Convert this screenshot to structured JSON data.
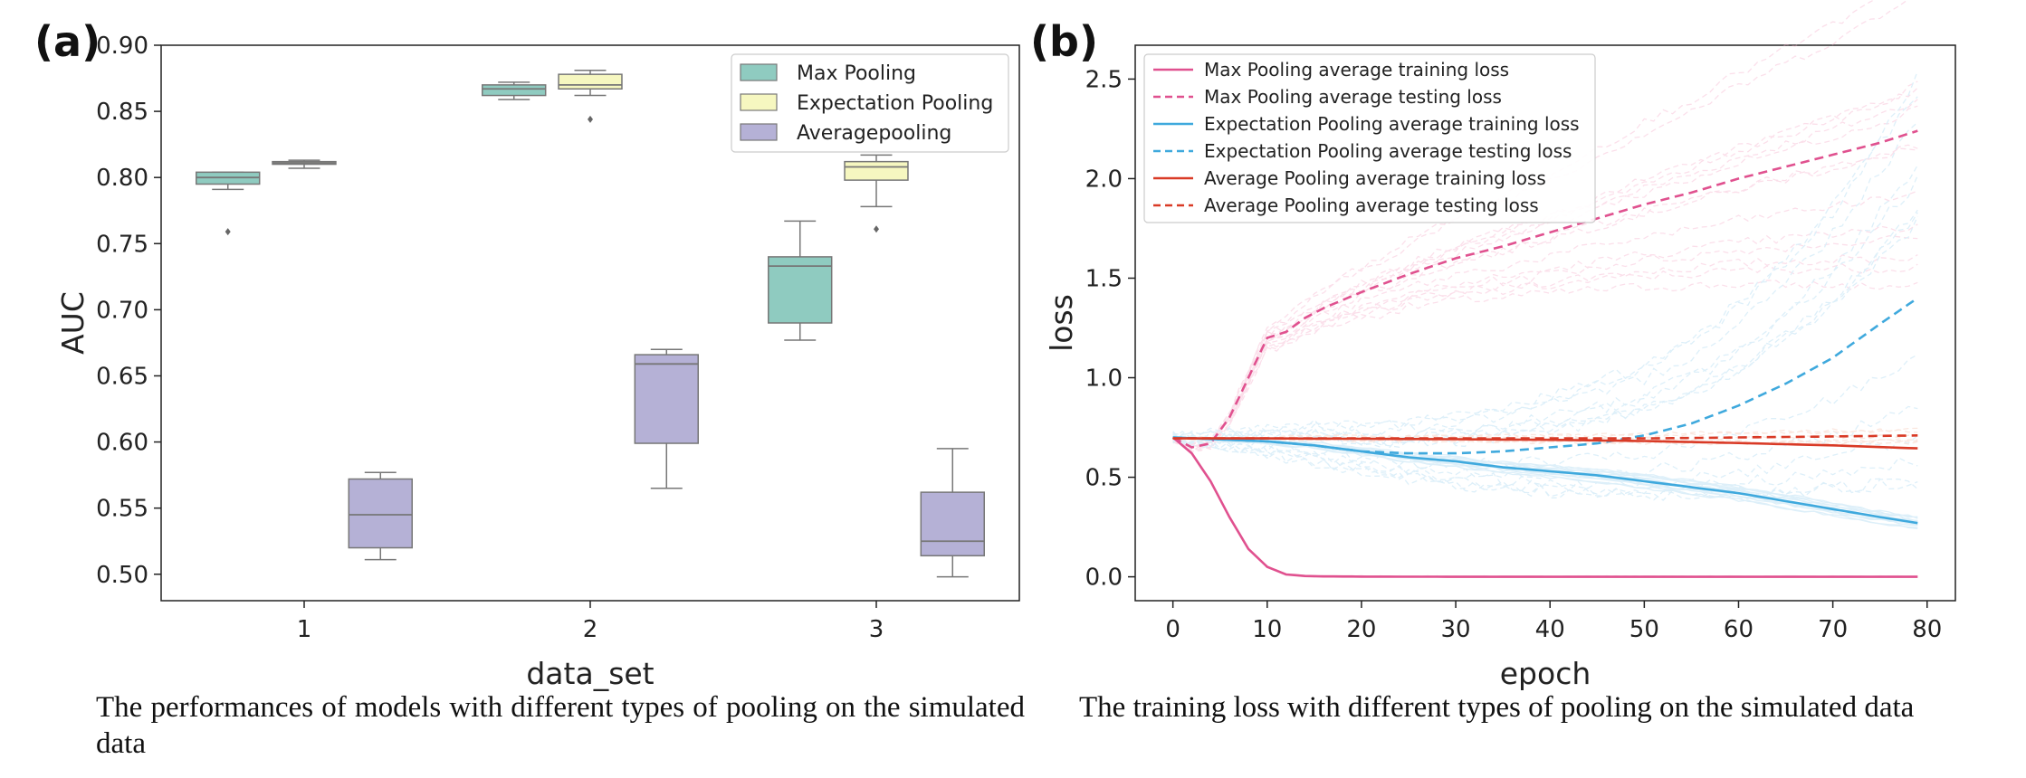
{
  "panel_a": {
    "label": "(a)",
    "caption": "The performances of models with different types of pooling on the simulated data"
  },
  "panel_b": {
    "label": "(b)",
    "caption": "The training loss with different types of pooling on the simulated data"
  },
  "chart_data": [
    {
      "type": "box",
      "xlabel": "data_set",
      "ylabel": "AUC",
      "ylim": [
        0.48,
        0.9
      ],
      "yticks": [
        0.5,
        0.55,
        0.6,
        0.65,
        0.7,
        0.75,
        0.8,
        0.85,
        0.9
      ],
      "categories": [
        "1",
        "2",
        "3"
      ],
      "legend_position": "top-right",
      "grid": false,
      "series": [
        {
          "name": "Max Pooling",
          "color": "#8fcbc0",
          "boxes": [
            {
              "category": "1",
              "whisker_low": 0.791,
              "q1": 0.795,
              "median": 0.8,
              "q3": 0.804,
              "whisker_high": 0.804,
              "outliers": [
                0.759
              ]
            },
            {
              "category": "2",
              "whisker_low": 0.859,
              "q1": 0.862,
              "median": 0.867,
              "q3": 0.87,
              "whisker_high": 0.872,
              "outliers": []
            },
            {
              "category": "3",
              "whisker_low": 0.677,
              "q1": 0.69,
              "median": 0.733,
              "q3": 0.74,
              "whisker_high": 0.767,
              "outliers": []
            }
          ]
        },
        {
          "name": "Expectation Pooling",
          "color": "#f6f7c0",
          "boxes": [
            {
              "category": "1",
              "whisker_low": 0.807,
              "q1": 0.81,
              "median": 0.811,
              "q3": 0.812,
              "whisker_high": 0.813,
              "outliers": []
            },
            {
              "category": "2",
              "whisker_low": 0.862,
              "q1": 0.867,
              "median": 0.87,
              "q3": 0.878,
              "whisker_high": 0.881,
              "outliers": [
                0.844
              ]
            },
            {
              "category": "3",
              "whisker_low": 0.778,
              "q1": 0.798,
              "median": 0.808,
              "q3": 0.812,
              "whisker_high": 0.817,
              "outliers": [
                0.761
              ]
            }
          ]
        },
        {
          "name": "Averagepooling",
          "color": "#b5b1d6",
          "boxes": [
            {
              "category": "1",
              "whisker_low": 0.511,
              "q1": 0.52,
              "median": 0.545,
              "q3": 0.572,
              "whisker_high": 0.577,
              "outliers": []
            },
            {
              "category": "2",
              "whisker_low": 0.565,
              "q1": 0.599,
              "median": 0.659,
              "q3": 0.666,
              "whisker_high": 0.67,
              "outliers": []
            },
            {
              "category": "3",
              "whisker_low": 0.498,
              "q1": 0.514,
              "median": 0.525,
              "q3": 0.562,
              "whisker_high": 0.595,
              "outliers": []
            }
          ]
        }
      ]
    },
    {
      "type": "line",
      "xlabel": "epoch",
      "ylabel": "loss",
      "xlim": [
        -4,
        83
      ],
      "ylim": [
        -0.12,
        2.67
      ],
      "xticks": [
        0,
        10,
        20,
        30,
        40,
        50,
        60,
        70,
        80
      ],
      "yticks": [
        0.0,
        0.5,
        1.0,
        1.5,
        2.0,
        2.5
      ],
      "legend_position": "top-left",
      "grid": false,
      "series": [
        {
          "name": "Max Pooling average training loss",
          "color": "#e0518f",
          "style": "solid",
          "x": [
            0,
            2,
            4,
            6,
            8,
            10,
            12,
            14,
            16,
            20,
            30,
            40,
            50,
            60,
            70,
            79
          ],
          "y": [
            0.7,
            0.62,
            0.48,
            0.3,
            0.14,
            0.05,
            0.012,
            0.004,
            0.002,
            0.001,
            0.0,
            0.0,
            0.0,
            0.0,
            0.0,
            0.0
          ]
        },
        {
          "name": "Max Pooling average testing loss",
          "color": "#e0518f",
          "style": "dashed",
          "x": [
            0,
            2,
            4,
            6,
            8,
            10,
            12,
            14,
            16,
            20,
            25,
            30,
            35,
            40,
            45,
            50,
            55,
            60,
            65,
            70,
            75,
            79
          ],
          "y": [
            0.7,
            0.65,
            0.67,
            0.8,
            1.0,
            1.2,
            1.23,
            1.3,
            1.35,
            1.43,
            1.52,
            1.6,
            1.66,
            1.73,
            1.8,
            1.87,
            1.93,
            2.0,
            2.06,
            2.12,
            2.18,
            2.24
          ]
        },
        {
          "name": "Expectation Pooling average training loss",
          "color": "#3fa9dd",
          "style": "solid",
          "x": [
            0,
            5,
            10,
            15,
            20,
            25,
            30,
            35,
            40,
            45,
            50,
            55,
            60,
            65,
            70,
            75,
            79
          ],
          "y": [
            0.7,
            0.69,
            0.68,
            0.66,
            0.63,
            0.6,
            0.58,
            0.55,
            0.53,
            0.51,
            0.48,
            0.45,
            0.42,
            0.38,
            0.34,
            0.3,
            0.27
          ]
        },
        {
          "name": "Expectation Pooling average testing loss",
          "color": "#3fa9dd",
          "style": "dashed",
          "x": [
            0,
            5,
            10,
            15,
            20,
            25,
            30,
            35,
            40,
            45,
            50,
            55,
            60,
            65,
            70,
            75,
            79
          ],
          "y": [
            0.7,
            0.69,
            0.68,
            0.66,
            0.63,
            0.62,
            0.62,
            0.63,
            0.65,
            0.67,
            0.71,
            0.77,
            0.86,
            0.97,
            1.1,
            1.27,
            1.4
          ]
        },
        {
          "name": "Average Pooling average training loss",
          "color": "#d93a26",
          "style": "solid",
          "x": [
            0,
            10,
            20,
            30,
            40,
            50,
            60,
            70,
            79
          ],
          "y": [
            0.695,
            0.695,
            0.693,
            0.691,
            0.688,
            0.682,
            0.672,
            0.66,
            0.645
          ]
        },
        {
          "name": "Average Pooling average testing loss",
          "color": "#d93a26",
          "style": "dashed",
          "x": [
            0,
            10,
            20,
            30,
            40,
            50,
            60,
            70,
            79
          ],
          "y": [
            0.695,
            0.695,
            0.695,
            0.695,
            0.695,
            0.695,
            0.7,
            0.705,
            0.71
          ]
        }
      ]
    }
  ]
}
